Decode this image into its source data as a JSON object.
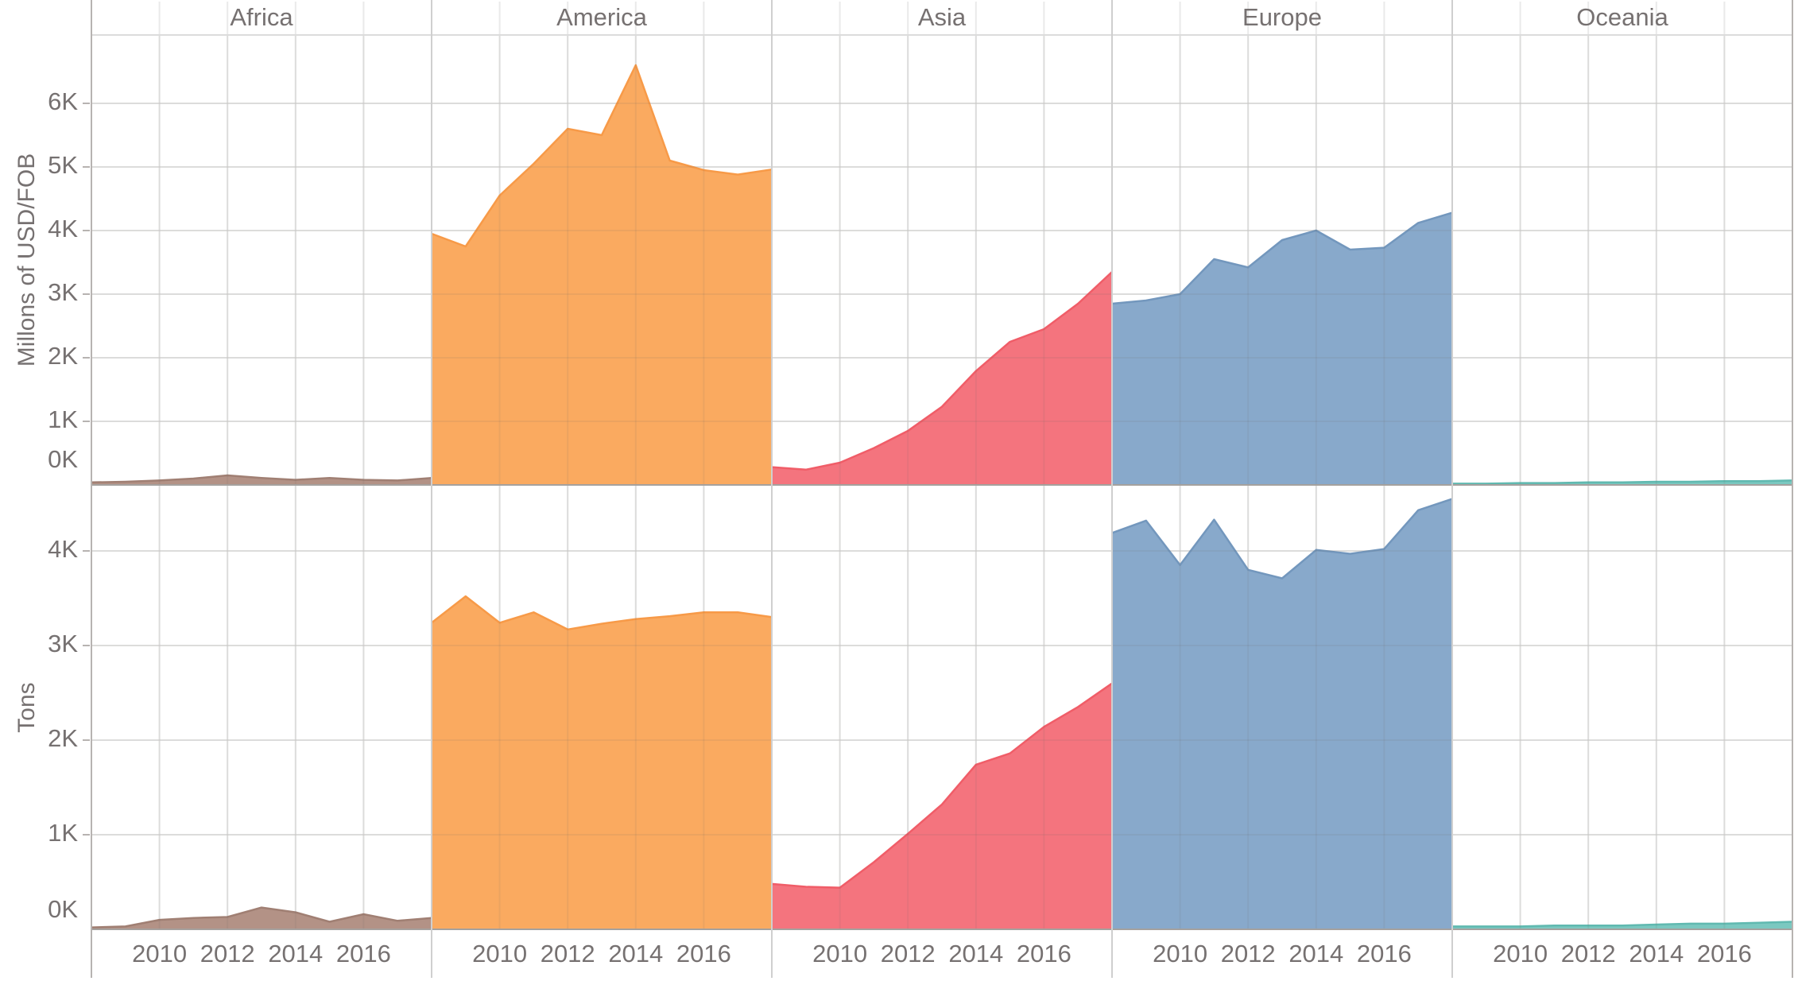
{
  "chart_data": {
    "type": "area",
    "layout": "faceted small multiples (5 columns x 2 rows)",
    "facet_columns": [
      "Africa",
      "America",
      "Asia",
      "Europe",
      "Oceania"
    ],
    "facet_rows": [
      {
        "label": "Millons of USD/FOB",
        "tick_labels": [
          "0K",
          "1K",
          "2K",
          "3K",
          "4K",
          "5K",
          "6K"
        ],
        "ylim": [
          0,
          7.08
        ]
      },
      {
        "label": "Tons",
        "tick_labels": [
          "0K",
          "1K",
          "2K",
          "3K",
          "4K"
        ],
        "ylim": [
          0,
          4.7
        ]
      }
    ],
    "x": [
      2008,
      2009,
      2010,
      2011,
      2012,
      2013,
      2014,
      2015,
      2016,
      2017,
      2018
    ],
    "x_tick_labels": [
      "2010",
      "2012",
      "2014",
      "2016"
    ],
    "grid": true,
    "legend": "none",
    "units_note": "values in thousands (K)",
    "series": [
      {
        "row": "Millons of USD/FOB",
        "name": "Africa",
        "values": [
          0.04,
          0.05,
          0.07,
          0.1,
          0.15,
          0.11,
          0.08,
          0.11,
          0.08,
          0.07,
          0.11
        ]
      },
      {
        "row": "Millons of USD/FOB",
        "name": "America",
        "values": [
          3.95,
          3.75,
          4.55,
          5.05,
          5.6,
          5.5,
          6.6,
          5.1,
          4.95,
          4.88,
          4.96
        ]
      },
      {
        "row": "Millons of USD/FOB",
        "name": "Asia",
        "values": [
          0.28,
          0.24,
          0.35,
          0.58,
          0.85,
          1.23,
          1.79,
          2.25,
          2.45,
          2.85,
          3.35
        ]
      },
      {
        "row": "Millons of USD/FOB",
        "name": "Europe",
        "values": [
          2.85,
          2.9,
          3.0,
          3.55,
          3.42,
          3.85,
          4.0,
          3.7,
          3.73,
          4.12,
          4.28
        ]
      },
      {
        "row": "Millons of USD/FOB",
        "name": "Oceania",
        "values": [
          0.02,
          0.02,
          0.03,
          0.03,
          0.04,
          0.04,
          0.05,
          0.05,
          0.06,
          0.06,
          0.07
        ]
      },
      {
        "row": "Tons",
        "name": "Africa",
        "values": [
          0.02,
          0.03,
          0.1,
          0.12,
          0.13,
          0.23,
          0.18,
          0.08,
          0.16,
          0.09,
          0.12
        ]
      },
      {
        "row": "Tons",
        "name": "America",
        "values": [
          3.24,
          3.52,
          3.24,
          3.35,
          3.17,
          3.23,
          3.28,
          3.31,
          3.35,
          3.35,
          3.3
        ]
      },
      {
        "row": "Tons",
        "name": "Asia",
        "values": [
          0.48,
          0.45,
          0.44,
          0.71,
          1.01,
          1.32,
          1.74,
          1.86,
          2.14,
          2.35,
          2.6
        ]
      },
      {
        "row": "Tons",
        "name": "Europe",
        "values": [
          4.19,
          4.32,
          3.85,
          4.33,
          3.8,
          3.71,
          4.01,
          3.97,
          4.02,
          4.43,
          4.55
        ]
      },
      {
        "row": "Tons",
        "name": "Oceania",
        "values": [
          0.03,
          0.03,
          0.03,
          0.04,
          0.04,
          0.04,
          0.05,
          0.06,
          0.06,
          0.07,
          0.08
        ]
      }
    ],
    "colors": {
      "Africa": {
        "fill": "#b39286",
        "stroke": "#a07f73"
      },
      "America": {
        "fill": "#faaa60",
        "stroke": "#f79a48"
      },
      "Asia": {
        "fill": "#f4747e",
        "stroke": "#f05d68"
      },
      "Europe": {
        "fill": "#88a9cb",
        "stroke": "#7397bd"
      },
      "Oceania": {
        "fill": "#7bc8c0",
        "stroke": "#60b9b0"
      },
      "text_gray": "#767171",
      "gridline": "#eaeaea",
      "panel_divider": "#cfcfcf",
      "axis_ruler": "#a5a19e",
      "header_border": "#dcdcdc"
    }
  }
}
